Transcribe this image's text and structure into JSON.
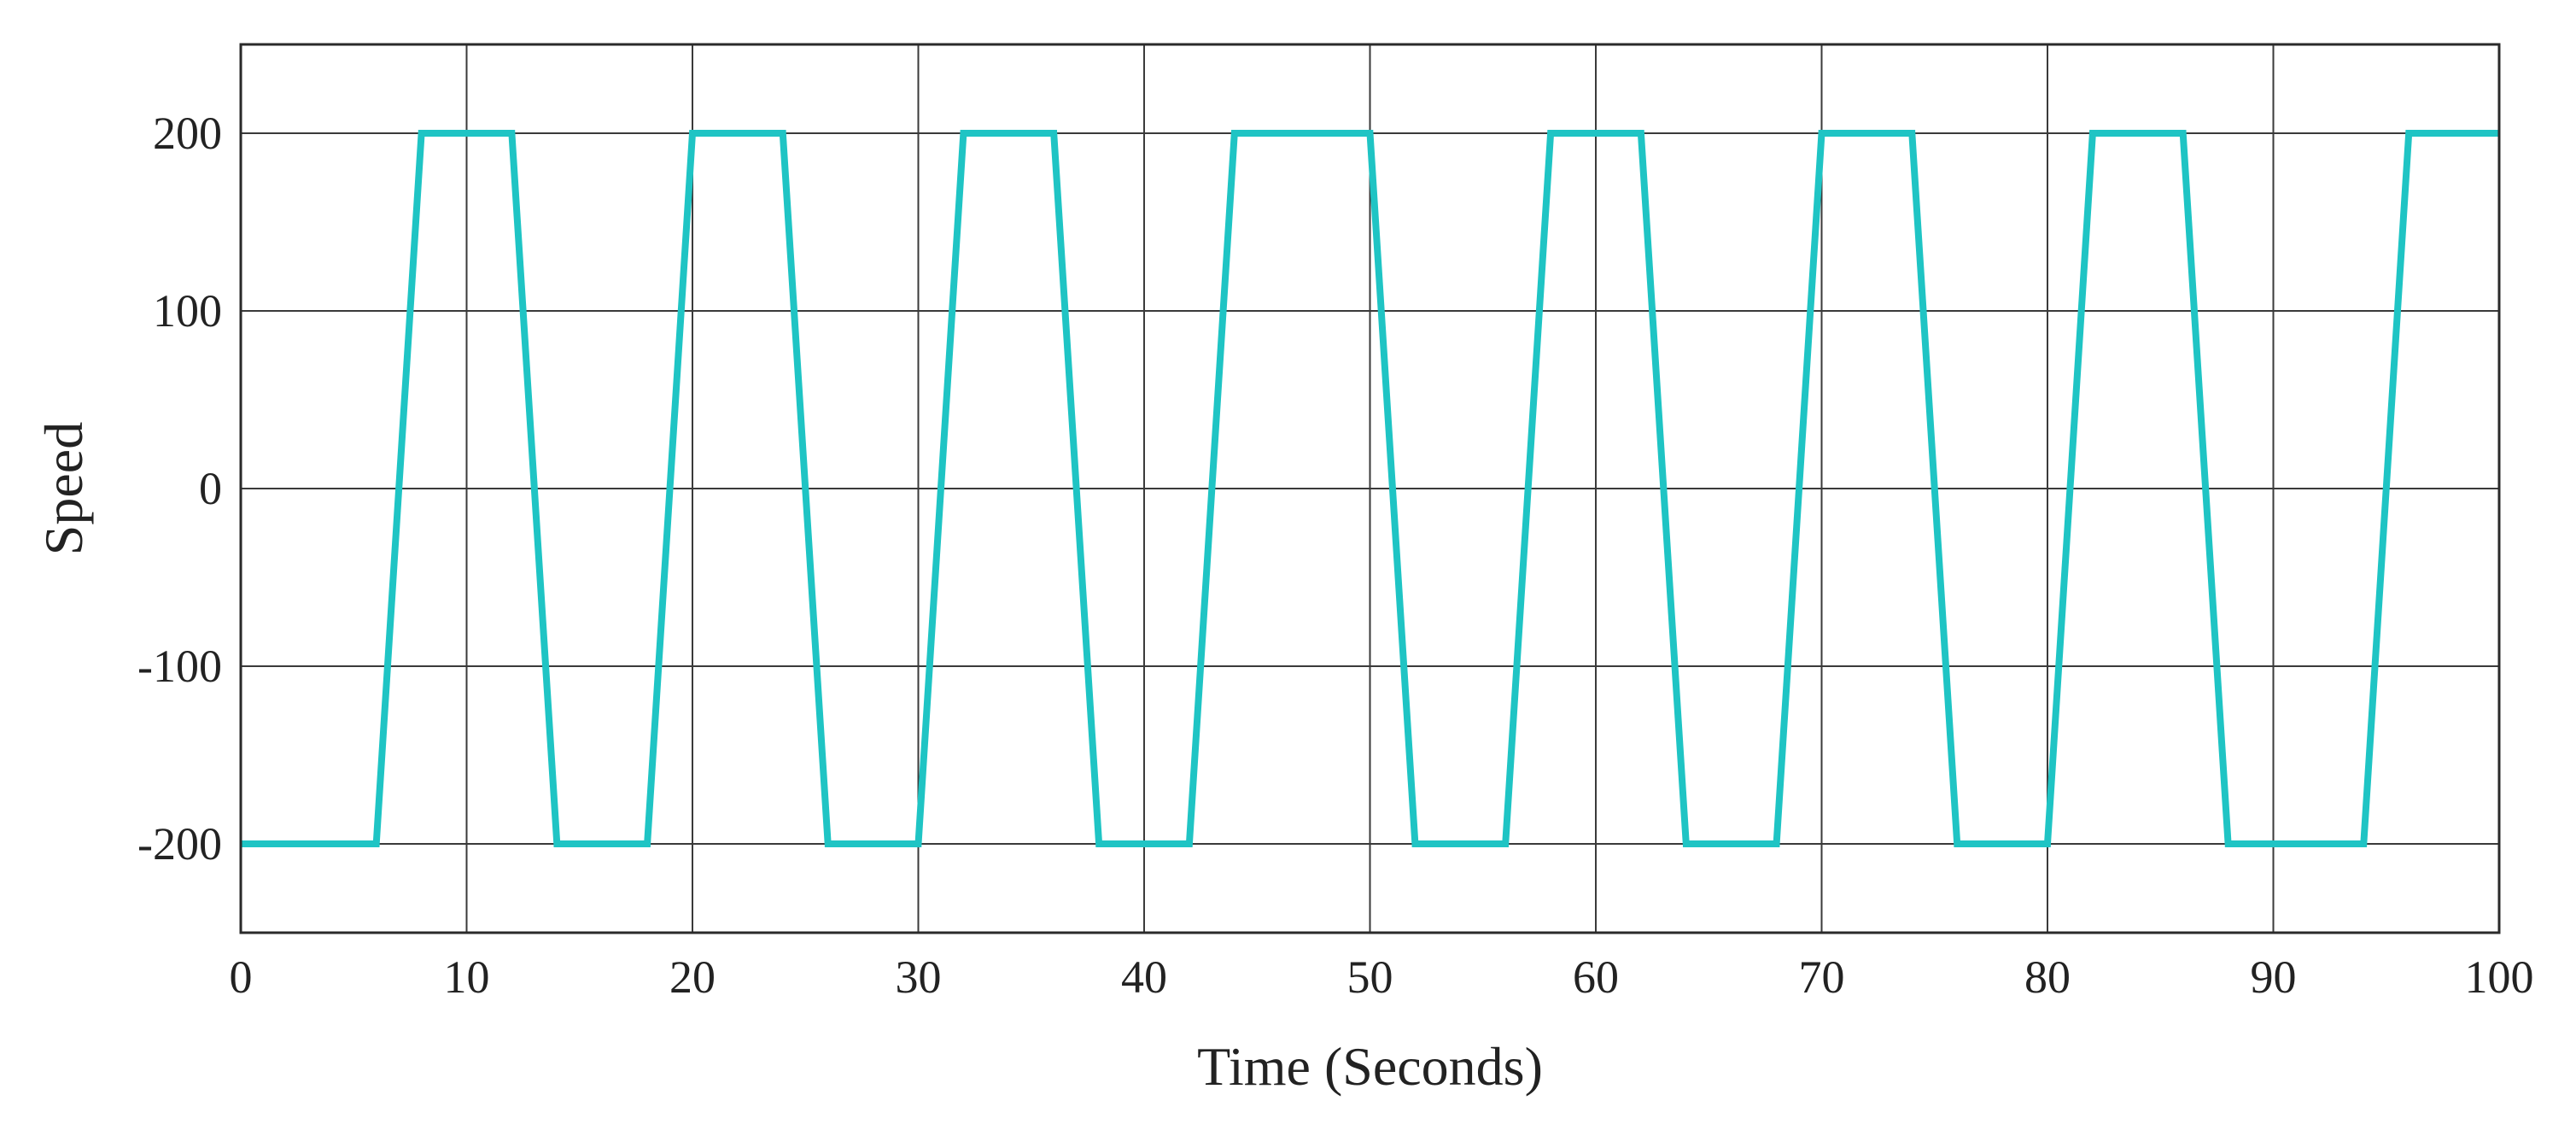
{
  "chart_data": {
    "type": "line",
    "title": "",
    "xlabel": "Time (Seconds)",
    "ylabel": "Speed",
    "xlim": [
      0,
      100
    ],
    "ylim": [
      -250,
      250
    ],
    "xticks": [
      0,
      10,
      20,
      30,
      40,
      50,
      60,
      70,
      80,
      90,
      100
    ],
    "xtick_labels": [
      "0",
      "10",
      "20",
      "30",
      "40",
      "50",
      "60",
      "70",
      "80",
      "90",
      "100"
    ],
    "yticks": [
      -200,
      -100,
      0,
      100,
      200
    ],
    "ytick_labels": [
      "-200",
      "-100",
      "0",
      "100",
      "200"
    ],
    "grid": true,
    "legend": "none",
    "series": [
      {
        "color": "#1fc4c4",
        "x": [
          0,
          6,
          8,
          12,
          14,
          18,
          20,
          24,
          26,
          30,
          32,
          36,
          38,
          42,
          44,
          50,
          52,
          56,
          58,
          62,
          64,
          68,
          70,
          74,
          76,
          80,
          82,
          86,
          88,
          94,
          96,
          100
        ],
        "y": [
          -200,
          -200,
          200,
          200,
          -200,
          -200,
          200,
          200,
          -200,
          -200,
          200,
          200,
          -200,
          -200,
          200,
          200,
          -200,
          -200,
          200,
          200,
          -200,
          -200,
          200,
          200,
          -200,
          -200,
          200,
          200,
          -200,
          -200,
          200,
          200
        ]
      }
    ]
  }
}
